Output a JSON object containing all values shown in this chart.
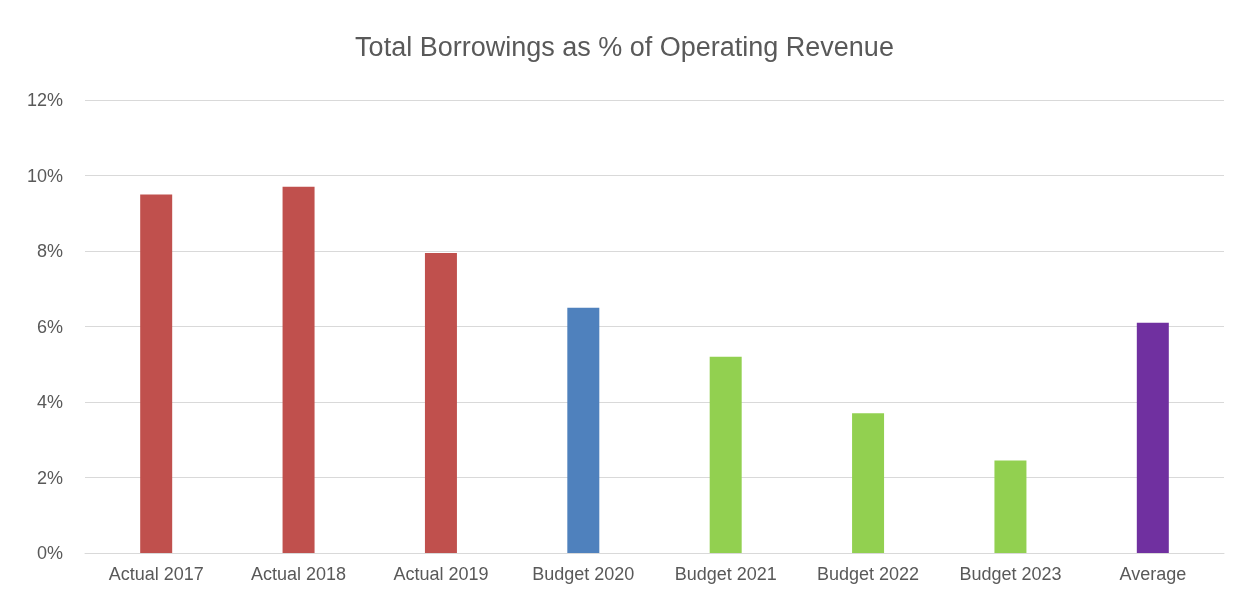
{
  "chart_data": {
    "type": "bar",
    "title": "Total Borrowings as % of Operating Revenue",
    "categories": [
      "Actual 2017",
      "Actual 2018",
      "Actual 2019",
      "Budget 2020",
      "Budget 2021",
      "Budget 2022",
      "Budget 2023",
      "Average"
    ],
    "values": [
      9.5,
      9.7,
      7.95,
      6.5,
      5.2,
      3.7,
      2.45,
      6.1
    ],
    "colors": [
      "#c0504d",
      "#c0504d",
      "#c0504d",
      "#4f81bd",
      "#92d050",
      "#92d050",
      "#92d050",
      "#7030a0"
    ],
    "ylim": [
      0,
      12
    ],
    "yticks": [
      {
        "value": 0,
        "label": "0%"
      },
      {
        "value": 2,
        "label": "2%"
      },
      {
        "value": 4,
        "label": "4%"
      },
      {
        "value": 6,
        "label": "6%"
      },
      {
        "value": 8,
        "label": "8%"
      },
      {
        "value": 10,
        "label": "10%"
      },
      {
        "value": 12,
        "label": "12%"
      }
    ],
    "grid": "y"
  }
}
